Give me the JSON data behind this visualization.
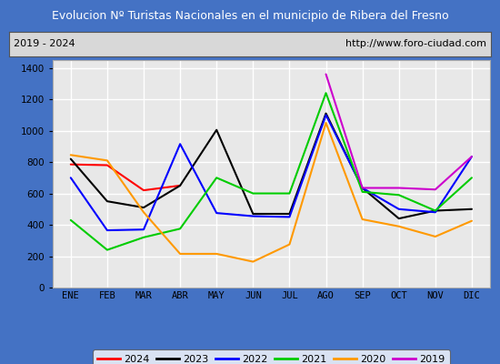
{
  "title": "Evolucion Nº Turistas Nacionales en el municipio de Ribera del Fresno",
  "subtitle_left": "2019 - 2024",
  "subtitle_right": "http://www.foro-ciudad.com",
  "months": [
    "ENE",
    "FEB",
    "MAR",
    "ABR",
    "MAY",
    "JUN",
    "JUL",
    "AGO",
    "SEP",
    "OCT",
    "NOV",
    "DIC"
  ],
  "series": {
    "2024": {
      "color": "#ff0000",
      "values": [
        785,
        780,
        620,
        650,
        null,
        null,
        null,
        null,
        null,
        null,
        null,
        null
      ]
    },
    "2023": {
      "color": "#000000",
      "values": [
        820,
        550,
        510,
        650,
        1005,
        470,
        470,
        1110,
        635,
        440,
        490,
        500
      ]
    },
    "2022": {
      "color": "#0000ff",
      "values": [
        700,
        365,
        370,
        915,
        475,
        455,
        450,
        1100,
        635,
        500,
        480,
        835
      ]
    },
    "2021": {
      "color": "#00cc00",
      "values": [
        430,
        240,
        320,
        375,
        700,
        600,
        600,
        1240,
        610,
        590,
        490,
        700
      ]
    },
    "2020": {
      "color": "#ff9900",
      "values": [
        845,
        810,
        480,
        215,
        215,
        165,
        275,
        1050,
        435,
        390,
        325,
        425
      ]
    },
    "2019": {
      "color": "#cc00cc",
      "values": [
        null,
        null,
        null,
        null,
        null,
        null,
        null,
        1360,
        635,
        635,
        625,
        835
      ]
    }
  },
  "ylim": [
    0,
    1450
  ],
  "yticks": [
    0,
    200,
    400,
    600,
    800,
    1000,
    1200,
    1400
  ],
  "title_bg_color": "#4472c4",
  "title_text_color": "#ffffff",
  "plot_bg_color": "#e8e8e8",
  "outer_bg_color": "#4472c4",
  "grid_color": "#ffffff",
  "subtitle_box_bg": "#d8d8d8",
  "legend_order": [
    "2024",
    "2023",
    "2022",
    "2021",
    "2020",
    "2019"
  ]
}
